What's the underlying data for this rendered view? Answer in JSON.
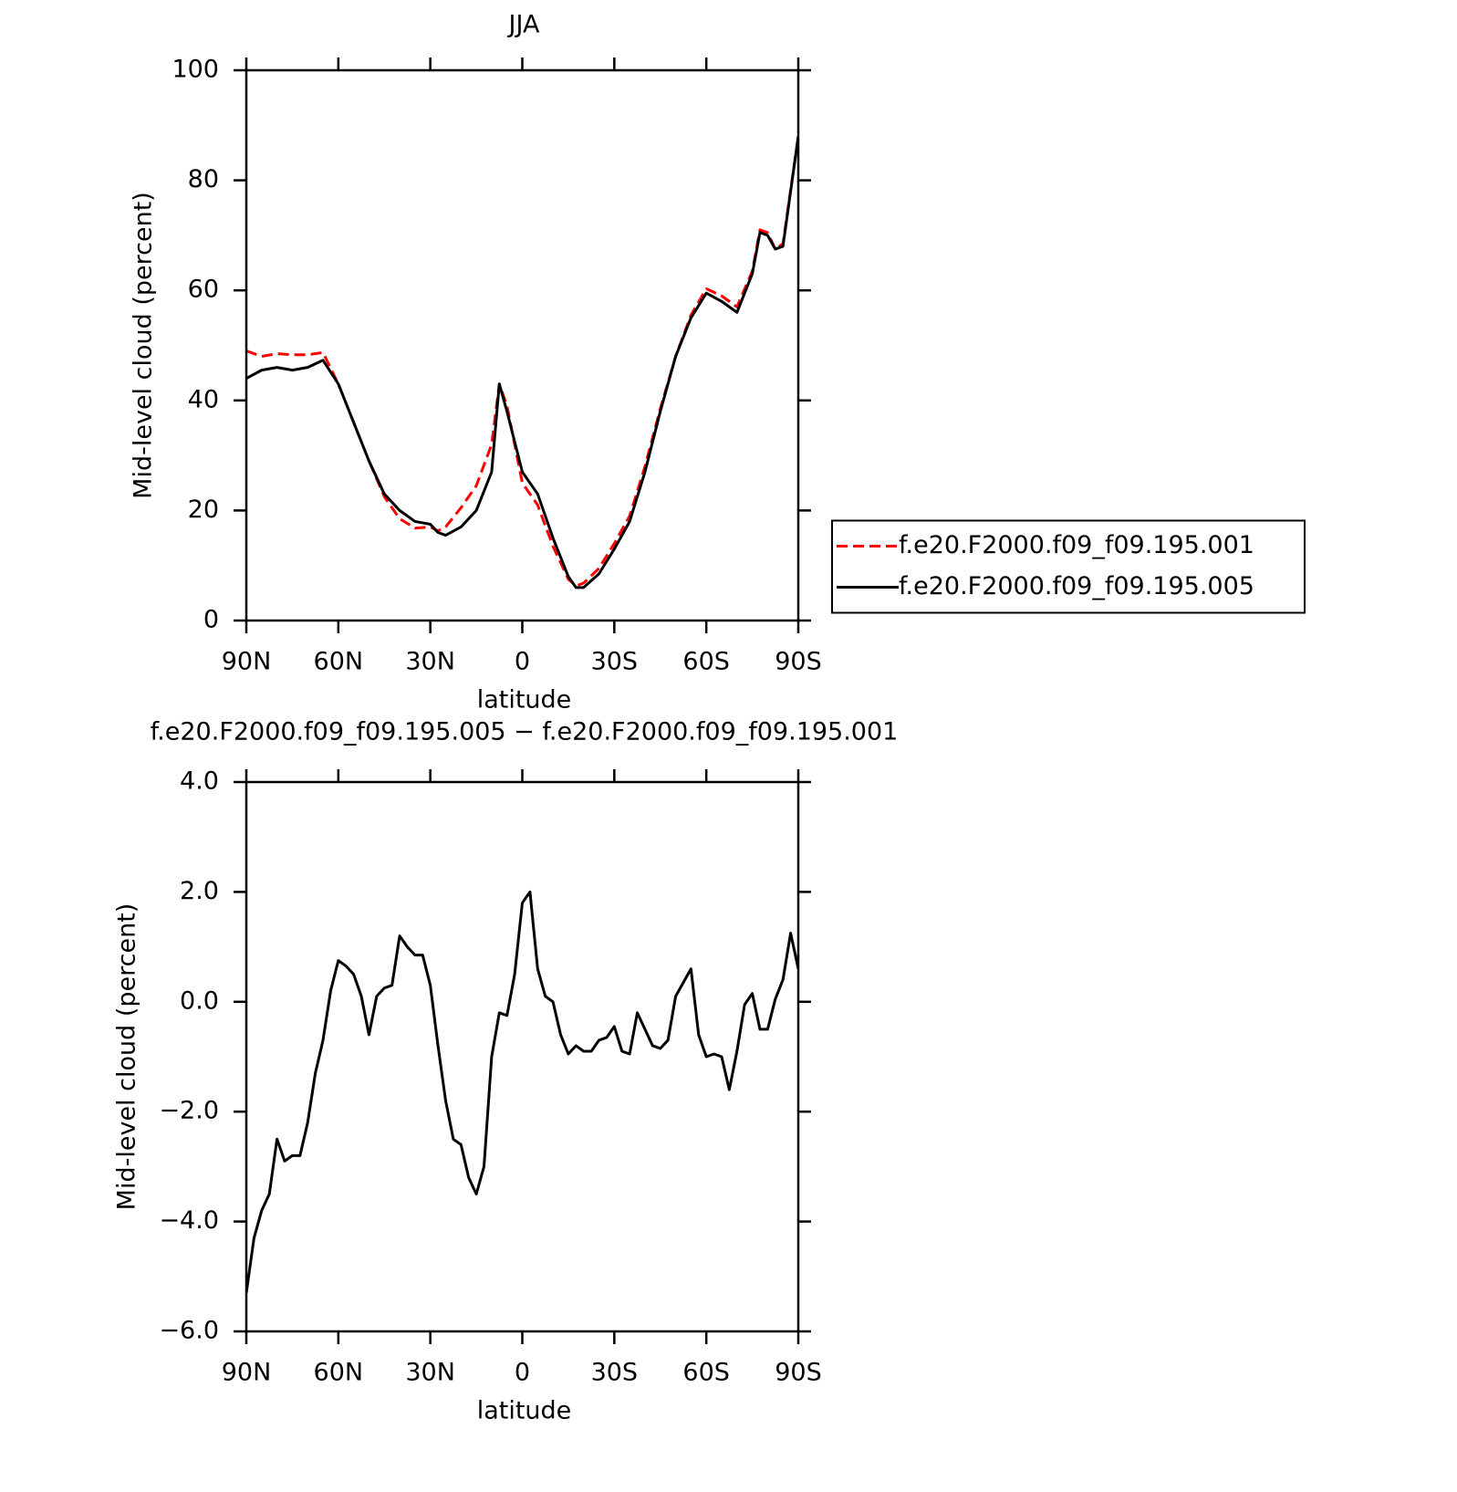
{
  "chart_data": [
    {
      "type": "line",
      "title": "JJA",
      "x_label": "latitude",
      "y_label": "Mid-level cloud (percent)",
      "x": [
        90,
        85,
        80,
        75,
        70,
        65,
        60,
        55,
        50,
        45,
        40,
        35,
        30,
        27.5,
        25,
        20,
        15,
        10,
        7.5,
        5,
        0,
        -5,
        -10,
        -15,
        -17.5,
        -20,
        -25,
        -30,
        -35,
        -40,
        -45,
        -50,
        -55,
        -60,
        -65,
        -70,
        -75,
        -77.5,
        -80,
        -82.5,
        -85,
        -90
      ],
      "series": [
        {
          "name": "f.e20.F2000.f09_f09.195.001",
          "color": "#ff0000",
          "line_style": "dashed",
          "values": [
            49,
            48,
            48.5,
            48.3,
            48.3,
            48.7,
            43,
            36,
            29,
            22.5,
            18.5,
            16.8,
            17,
            16.3,
            17,
            20.5,
            24.5,
            32,
            43,
            39,
            25,
            21,
            13.5,
            7.5,
            6.3,
            6.8,
            9.5,
            14,
            19,
            28,
            38.5,
            48,
            55.5,
            60.3,
            59,
            57,
            63.5,
            71,
            70.5,
            67.5,
            68.5,
            88
          ]
        },
        {
          "name": "f.e20.F2000.f09_f09.195.005",
          "color": "#000000",
          "line_style": "solid",
          "values": [
            44,
            45.5,
            46,
            45.5,
            46,
            47.3,
            43,
            36,
            29,
            23,
            20,
            18,
            17.5,
            16,
            15.5,
            17,
            20,
            27,
            43,
            38,
            27,
            23,
            15,
            8,
            6,
            6,
            8.5,
            13,
            18,
            27,
            38,
            48,
            55,
            59.5,
            58,
            56,
            63,
            70.5,
            70,
            67.5,
            68,
            88
          ]
        }
      ],
      "xlim": [
        90,
        -90
      ],
      "xticks": [
        {
          "value": 90,
          "label": "90N"
        },
        {
          "value": 60,
          "label": "60N"
        },
        {
          "value": 30,
          "label": "30N"
        },
        0,
        {
          "value": -30,
          "label": "30S"
        },
        {
          "value": -60,
          "label": "60S"
        },
        {
          "value": -90,
          "label": "90S"
        }
      ],
      "ylim": [
        0,
        100
      ],
      "yticks": [
        0,
        20,
        40,
        60,
        80,
        100
      ],
      "legend": "right"
    },
    {
      "type": "line",
      "title": "f.e20.F2000.f09_f09.195.005 − f.e20.F2000.f09_f09.195.001",
      "x_label": "latitude",
      "y_label": "Mid-level cloud (percent)",
      "x": [
        90,
        87.5,
        85,
        82.5,
        80,
        77.5,
        75,
        72.5,
        70,
        67.5,
        65,
        62.5,
        60,
        57.5,
        55,
        52.5,
        50,
        47.5,
        45,
        42.5,
        40,
        37.5,
        35,
        32.5,
        30,
        27.5,
        25,
        22.5,
        20,
        17.5,
        15,
        12.5,
        10,
        7.5,
        5,
        2.5,
        0,
        -2.5,
        -5,
        -7.5,
        -10,
        -12.5,
        -15,
        -17.5,
        -20,
        -22.5,
        -25,
        -27.5,
        -30,
        -32.5,
        -35,
        -37.5,
        -40,
        -42.5,
        -45,
        -47.5,
        -50,
        -52.5,
        -55,
        -57.5,
        -60,
        -62.5,
        -65,
        -67.5,
        -70,
        -72.5,
        -75,
        -77.5,
        -80,
        -82.5,
        -85,
        -87.5,
        -90
      ],
      "series": [
        {
          "color": "#000000",
          "line_style": "solid",
          "values": [
            -5.3,
            -4.3,
            -3.8,
            -3.5,
            -2.5,
            -2.9,
            -2.8,
            -2.8,
            -2.2,
            -1.3,
            -0.7,
            0.2,
            0.75,
            0.65,
            0.5,
            0.1,
            -0.6,
            0.1,
            0.25,
            0.3,
            1.2,
            1.0,
            0.85,
            0.85,
            0.3,
            -0.8,
            -1.8,
            -2.5,
            -2.6,
            -3.2,
            -3.5,
            -3.0,
            -1.0,
            -0.2,
            -0.25,
            0.5,
            1.8,
            2.0,
            0.6,
            0.1,
            0.0,
            -0.6,
            -0.95,
            -0.8,
            -0.9,
            -0.9,
            -0.7,
            -0.65,
            -0.45,
            -0.9,
            -0.95,
            -0.2,
            -0.5,
            -0.8,
            -0.85,
            -0.7,
            0.1,
            0.35,
            0.6,
            -0.6,
            -1.0,
            -0.95,
            -1.0,
            -1.6,
            -0.9,
            -0.05,
            0.15,
            -0.5,
            -0.5,
            0.05,
            0.4,
            1.25,
            0.6
          ]
        }
      ],
      "xlim": [
        90,
        -90
      ],
      "xticks": [
        {
          "value": 90,
          "label": "90N"
        },
        {
          "value": 60,
          "label": "60N"
        },
        {
          "value": 30,
          "label": "30N"
        },
        0,
        {
          "value": -30,
          "label": "30S"
        },
        {
          "value": -60,
          "label": "60S"
        },
        {
          "value": -90,
          "label": "90S"
        }
      ],
      "ylim": [
        -6,
        4
      ],
      "yticks": [
        {
          "value": -6,
          "label": "−6.0"
        },
        {
          "value": -4,
          "label": "−4.0"
        },
        {
          "value": -2,
          "label": "−2.0"
        },
        {
          "value": 0,
          "label": "0.0"
        },
        {
          "value": 2,
          "label": "2.0"
        },
        {
          "value": 4,
          "label": "4.0"
        }
      ]
    }
  ]
}
